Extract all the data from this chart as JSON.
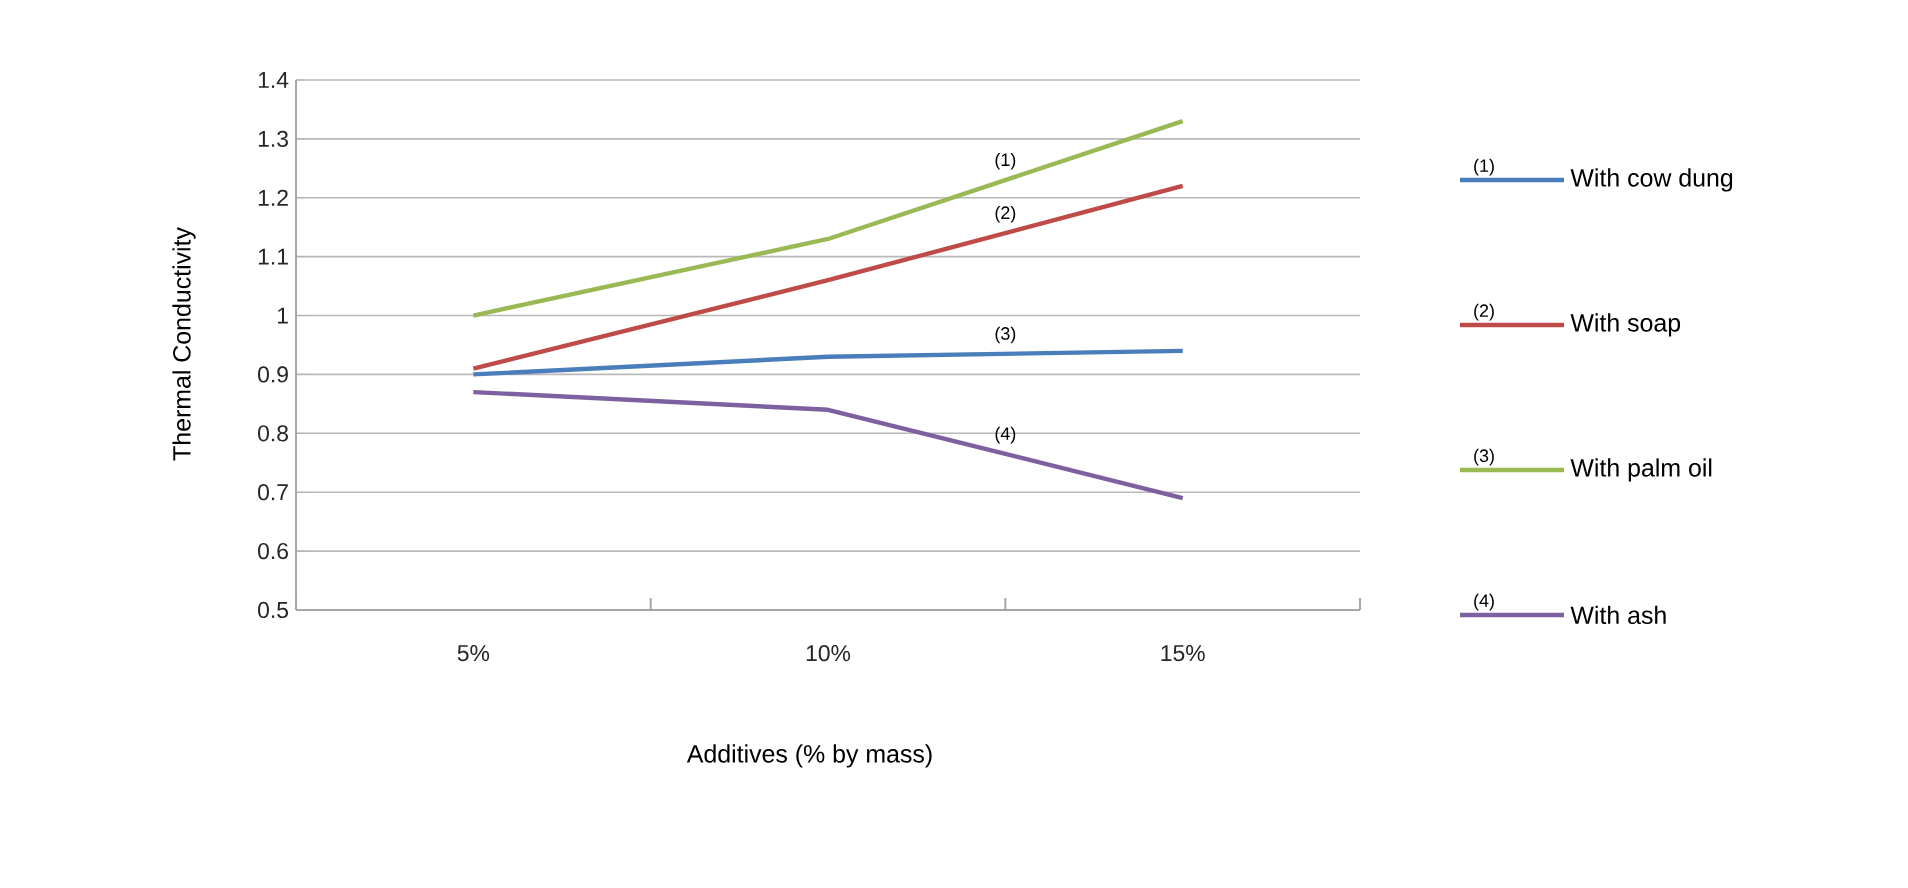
{
  "chart_data": {
    "type": "line",
    "xlabel": "Additives (% by mass)",
    "ylabel": "Thermal Conductivity",
    "categories": [
      "5%",
      "10%",
      "15%"
    ],
    "series": [
      {
        "name": "With cow dung",
        "color": "#4a7ebb",
        "values": [
          0.9,
          0.93,
          0.94
        ]
      },
      {
        "name": "With soap",
        "color": "#be4b48",
        "values": [
          0.91,
          1.06,
          1.22
        ]
      },
      {
        "name": "With palm oil",
        "color": "#98b954",
        "values": [
          1.0,
          1.13,
          1.33
        ]
      },
      {
        "name": "With ash",
        "color": "#7d60a0",
        "values": [
          0.87,
          0.84,
          0.69
        ]
      }
    ],
    "ylim": [
      0.5,
      1.4
    ],
    "yticks": [
      0.5,
      0.6,
      0.7,
      0.8,
      0.9,
      1,
      1.1,
      1.2,
      1.3,
      1.4
    ],
    "grid": "y",
    "legend": "right",
    "line_style": "solid",
    "annotations": [
      "(1)",
      "(2)",
      "(3)",
      "(4)",
      "(1)",
      "(2)",
      "(3)",
      "(4)"
    ]
  }
}
